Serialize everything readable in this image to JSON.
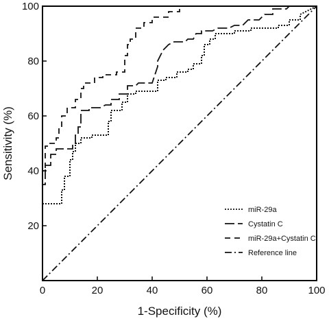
{
  "chart_data": {
    "type": "line",
    "title": "",
    "xlabel": "1-Specificity (%)",
    "ylabel": "Sensitivity (%)",
    "xlim": [
      0,
      100
    ],
    "ylim": [
      0,
      100
    ],
    "x_ticks": [
      0,
      20,
      40,
      60,
      80,
      100
    ],
    "y_ticks": [
      20,
      40,
      60,
      80,
      100
    ],
    "grid": false,
    "legend_position": "bottom-right",
    "series": [
      {
        "name": "miR-29a",
        "dash": "dotted",
        "points": [
          [
            0,
            0
          ],
          [
            0,
            28
          ],
          [
            7,
            28
          ],
          [
            7,
            33
          ],
          [
            8,
            33
          ],
          [
            8,
            38
          ],
          [
            10,
            38
          ],
          [
            10,
            44
          ],
          [
            11,
            44
          ],
          [
            11,
            47
          ],
          [
            12,
            47
          ],
          [
            12,
            50
          ],
          [
            14,
            50
          ],
          [
            14,
            52
          ],
          [
            18,
            52
          ],
          [
            18,
            53
          ],
          [
            24,
            53
          ],
          [
            24,
            58
          ],
          [
            25,
            58
          ],
          [
            25,
            62
          ],
          [
            29,
            62
          ],
          [
            29,
            65
          ],
          [
            31,
            65
          ],
          [
            31,
            68
          ],
          [
            34,
            68
          ],
          [
            34,
            69
          ],
          [
            42,
            69
          ],
          [
            42,
            73
          ],
          [
            45,
            73
          ],
          [
            45,
            74
          ],
          [
            49,
            74
          ],
          [
            49,
            76
          ],
          [
            53,
            76
          ],
          [
            53,
            77
          ],
          [
            55,
            77
          ],
          [
            55,
            79
          ],
          [
            58,
            79
          ],
          [
            58,
            82
          ],
          [
            59,
            82
          ],
          [
            59,
            86
          ],
          [
            61,
            86
          ],
          [
            61,
            88
          ],
          [
            63,
            88
          ],
          [
            63,
            90
          ],
          [
            70,
            90
          ],
          [
            70,
            91
          ],
          [
            76,
            91
          ],
          [
            76,
            92
          ],
          [
            86,
            92
          ],
          [
            86,
            93
          ],
          [
            90,
            93
          ],
          [
            90,
            95
          ],
          [
            94,
            95
          ],
          [
            94,
            97
          ],
          [
            100,
            100
          ]
        ]
      },
      {
        "name": "Cystatin C",
        "dash": "long-dash",
        "points": [
          [
            0,
            0
          ],
          [
            0,
            35
          ],
          [
            1,
            35
          ],
          [
            1,
            42
          ],
          [
            3,
            42
          ],
          [
            3,
            46
          ],
          [
            5,
            46
          ],
          [
            5,
            48
          ],
          [
            11,
            48
          ],
          [
            11,
            50
          ],
          [
            12,
            50
          ],
          [
            12,
            53
          ],
          [
            13,
            53
          ],
          [
            13,
            56
          ],
          [
            14,
            56
          ],
          [
            14,
            62
          ],
          [
            17,
            62
          ],
          [
            17,
            63
          ],
          [
            21,
            63
          ],
          [
            23,
            64
          ],
          [
            25,
            64
          ],
          [
            25,
            66
          ],
          [
            28,
            66
          ],
          [
            28,
            68
          ],
          [
            31,
            68
          ],
          [
            31,
            71
          ],
          [
            34,
            71
          ],
          [
            35,
            72
          ],
          [
            40,
            72
          ],
          [
            41,
            75
          ],
          [
            42,
            78
          ],
          [
            42,
            80
          ],
          [
            44,
            84
          ],
          [
            46,
            86
          ],
          [
            48,
            87
          ],
          [
            52,
            87
          ],
          [
            53,
            88
          ],
          [
            55,
            88
          ],
          [
            56,
            90
          ],
          [
            58,
            90
          ],
          [
            58,
            91
          ],
          [
            62,
            91
          ],
          [
            64,
            92
          ],
          [
            68,
            92
          ],
          [
            70,
            93
          ],
          [
            73,
            93
          ],
          [
            75,
            95
          ],
          [
            79,
            95
          ],
          [
            81,
            97
          ],
          [
            84,
            97
          ],
          [
            84,
            99
          ],
          [
            89,
            99
          ],
          [
            90,
            100
          ],
          [
            100,
            100
          ]
        ]
      },
      {
        "name": "miR-29a+Cystatin C",
        "dash": "dashed",
        "points": [
          [
            0,
            0
          ],
          [
            0,
            40
          ],
          [
            1,
            40
          ],
          [
            1,
            49
          ],
          [
            2,
            49
          ],
          [
            2,
            50
          ],
          [
            5,
            50
          ],
          [
            5,
            52
          ],
          [
            6,
            52
          ],
          [
            6,
            56
          ],
          [
            7,
            56
          ],
          [
            7,
            60
          ],
          [
            9,
            60
          ],
          [
            9,
            63
          ],
          [
            12,
            63
          ],
          [
            12,
            66
          ],
          [
            14,
            66
          ],
          [
            14,
            70
          ],
          [
            15,
            70
          ],
          [
            15,
            72
          ],
          [
            19,
            72
          ],
          [
            19,
            74
          ],
          [
            22,
            74
          ],
          [
            22,
            75
          ],
          [
            27,
            75
          ],
          [
            27,
            76
          ],
          [
            30,
            76
          ],
          [
            30,
            82
          ],
          [
            31,
            82
          ],
          [
            31,
            86
          ],
          [
            32,
            86
          ],
          [
            32,
            88
          ],
          [
            34,
            88
          ],
          [
            34,
            92
          ],
          [
            37,
            92
          ],
          [
            37,
            94
          ],
          [
            40,
            94
          ],
          [
            40,
            96
          ],
          [
            46,
            96
          ],
          [
            46,
            98
          ],
          [
            50,
            98
          ],
          [
            50,
            100
          ],
          [
            100,
            100
          ]
        ]
      },
      {
        "name": "Reference line",
        "dash": "dash-dot",
        "points": [
          [
            0,
            0
          ],
          [
            100,
            100
          ]
        ]
      }
    ]
  }
}
